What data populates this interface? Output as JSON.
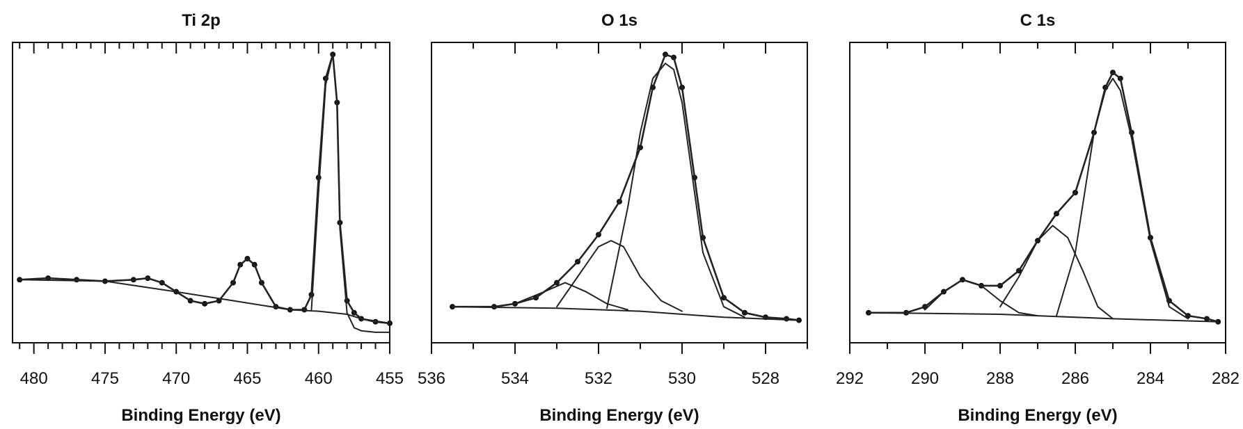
{
  "chart_data": [
    {
      "type": "line",
      "title": "Ti 2p",
      "xlabel": "Binding Energy (eV)",
      "ylabel": "",
      "xlim": [
        481.5,
        455
      ],
      "ylim": [
        0,
        100
      ],
      "x_reversed": true,
      "xticks": [
        480,
        475,
        470,
        465,
        460,
        455
      ],
      "grid": false,
      "series": [
        {
          "style": "points",
          "x": [
            481,
            479,
            477,
            475,
            473,
            472,
            471,
            470,
            469,
            468,
            467,
            466,
            465.5,
            465,
            464.5,
            464,
            463,
            462,
            461,
            460.5,
            460,
            459.5,
            459,
            458.7,
            458.5,
            458,
            457.5,
            457,
            456,
            455
          ],
          "y": [
            21,
            21.5,
            21,
            20.5,
            21,
            21.5,
            20,
            17,
            14,
            13,
            14,
            20,
            26,
            28,
            26,
            20,
            12,
            11,
            11,
            16,
            55,
            88,
            96,
            80,
            40,
            14,
            10,
            8,
            7,
            6.5
          ]
        },
        {
          "style": "line",
          "x": [
            481,
            479,
            477,
            475,
            473,
            472,
            471,
            470,
            469,
            468,
            467,
            466,
            465.5,
            465,
            464.5,
            464,
            463,
            462,
            461,
            460.5,
            460,
            459.5,
            459,
            458.7,
            458.5,
            458,
            457.5,
            457,
            456,
            455
          ],
          "y": [
            21,
            21.5,
            21,
            20.5,
            21,
            21.5,
            20,
            17,
            14,
            13,
            14,
            20,
            26,
            28,
            26,
            20,
            12,
            11,
            11,
            16,
            55,
            88,
            96,
            80,
            40,
            14,
            10,
            8,
            7,
            6.5
          ]
        },
        {
          "style": "line",
          "x": [
            481,
            475,
            470,
            466,
            462,
            460,
            459,
            458,
            457,
            455
          ],
          "y": [
            21,
            20.5,
            17,
            14,
            11,
            10.5,
            10,
            9.5,
            8,
            6.5
          ]
        },
        {
          "style": "line",
          "x": [
            460.5,
            460,
            459.5,
            459,
            458.7,
            458.5,
            458,
            457.5,
            457,
            456,
            455
          ],
          "y": [
            11,
            50,
            86,
            96,
            80,
            38,
            10,
            5,
            4,
            3.5,
            3.5
          ]
        }
      ]
    },
    {
      "type": "line",
      "title": "O 1s",
      "xlabel": "Binding Energy (eV)",
      "ylabel": "",
      "xlim": [
        536,
        527
      ],
      "ylim": [
        0,
        100
      ],
      "x_reversed": true,
      "xticks": [
        536,
        534,
        532,
        530,
        528
      ],
      "grid": false,
      "series": [
        {
          "style": "points",
          "x": [
            535.5,
            534.5,
            534,
            533.5,
            533,
            532.5,
            532,
            531.5,
            531,
            530.7,
            530.4,
            530.2,
            530,
            529.7,
            529.5,
            529,
            528.5,
            528,
            527.5,
            527.2
          ],
          "y": [
            12,
            12,
            13,
            15,
            20,
            27,
            36,
            47,
            65,
            85,
            96,
            95,
            85,
            55,
            35,
            15,
            10,
            8.5,
            8,
            7.5
          ]
        },
        {
          "style": "line",
          "x": [
            535.5,
            534.5,
            534,
            533.5,
            533,
            532.5,
            532,
            531.5,
            531,
            530.7,
            530.4,
            530.2,
            530,
            529.7,
            529.5,
            529,
            528.5,
            528,
            527.5,
            527.2
          ],
          "y": [
            12,
            12,
            13,
            15,
            20,
            27,
            36,
            47,
            65,
            85,
            96,
            95,
            85,
            55,
            35,
            15,
            10,
            8.5,
            8,
            7.5
          ]
        },
        {
          "style": "line",
          "x": [
            535.5,
            533,
            531,
            529,
            527.2
          ],
          "y": [
            12,
            11.5,
            10.5,
            8.5,
            7.5
          ]
        },
        {
          "style": "line",
          "x": [
            531.8,
            531.3,
            531,
            530.7,
            530.4,
            530.2,
            530,
            529.7,
            529.5,
            529,
            528.5
          ],
          "y": [
            11.5,
            45,
            70,
            88,
            93,
            91,
            80,
            50,
            30,
            12,
            8.5
          ]
        },
        {
          "style": "line",
          "x": [
            533,
            532.5,
            532,
            531.7,
            531.4,
            531,
            530.5,
            530
          ],
          "y": [
            12,
            22,
            32,
            34,
            32,
            22,
            14,
            10.5
          ]
        },
        {
          "style": "line",
          "x": [
            534,
            533.3,
            532.8,
            532.3,
            531.8,
            531.3
          ],
          "y": [
            13,
            17,
            20,
            17,
            13,
            11
          ]
        }
      ]
    },
    {
      "type": "line",
      "title": "C 1s",
      "xlabel": "Binding Energy (eV)",
      "ylabel": "",
      "xlim": [
        292,
        282
      ],
      "ylim": [
        0,
        100
      ],
      "x_reversed": true,
      "xticks": [
        292,
        290,
        288,
        286,
        284,
        282
      ],
      "grid": false,
      "series": [
        {
          "style": "points",
          "x": [
            291.5,
            290.5,
            290,
            289.5,
            289,
            288.5,
            288,
            287.5,
            287,
            286.5,
            286,
            285.5,
            285.2,
            285,
            284.8,
            284.5,
            284,
            283.5,
            283,
            282.5,
            282.2
          ],
          "y": [
            10,
            10,
            12,
            17,
            21,
            19,
            19,
            24,
            34,
            43,
            50,
            70,
            85,
            90,
            88,
            70,
            35,
            14,
            9,
            8,
            7
          ]
        },
        {
          "style": "line",
          "x": [
            291.5,
            290.5,
            290,
            289.5,
            289,
            288.5,
            288,
            287.5,
            287,
            286.5,
            286,
            285.5,
            285.2,
            285,
            284.8,
            284.5,
            284,
            283.5,
            283,
            282.5,
            282.2
          ],
          "y": [
            10,
            10,
            12,
            17,
            21,
            19,
            19,
            24,
            34,
            43,
            50,
            70,
            85,
            90,
            88,
            70,
            35,
            14,
            9,
            8,
            7
          ]
        },
        {
          "style": "line",
          "x": [
            291.5,
            288,
            285,
            282.2
          ],
          "y": [
            10,
            9.5,
            8,
            7
          ]
        },
        {
          "style": "line",
          "x": [
            286.5,
            286,
            285.5,
            285.2,
            285,
            284.8,
            284.5,
            284,
            283.5,
            283
          ],
          "y": [
            9,
            30,
            70,
            84,
            88,
            84,
            68,
            34,
            12,
            8
          ]
        },
        {
          "style": "line",
          "x": [
            288,
            287.5,
            287,
            286.6,
            286.2,
            285.8,
            285.4,
            285
          ],
          "y": [
            12,
            22,
            34,
            39,
            35,
            24,
            12,
            8
          ]
        },
        {
          "style": "line",
          "x": [
            290,
            289.5,
            289,
            288.5,
            288,
            287.5,
            287
          ],
          "y": [
            11,
            17,
            21,
            19,
            14,
            10,
            9
          ]
        }
      ]
    }
  ]
}
